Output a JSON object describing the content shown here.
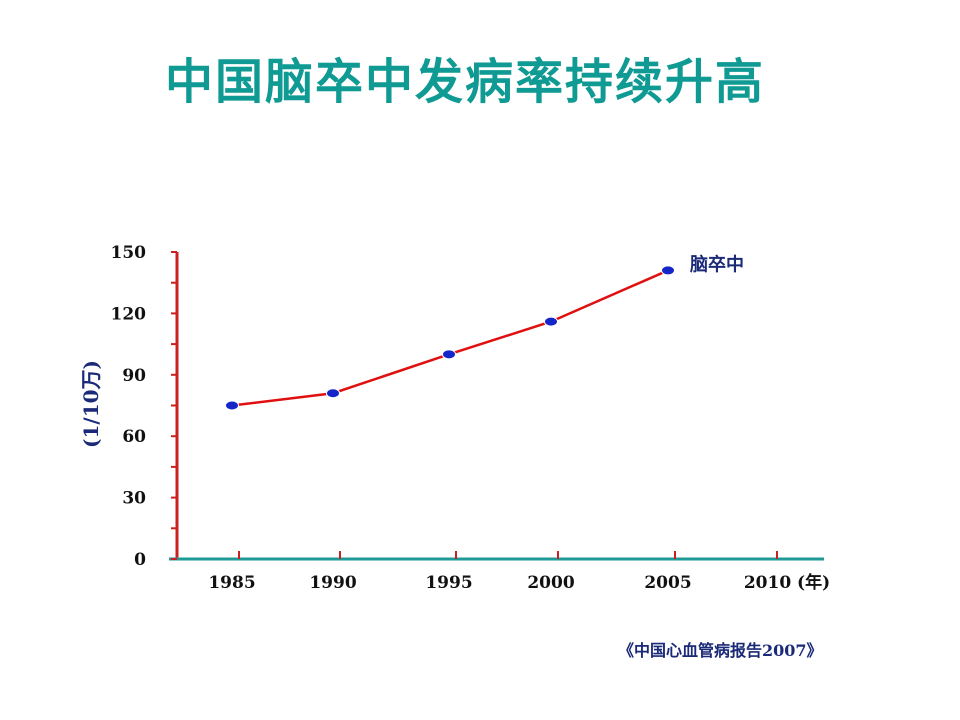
{
  "title": "中国脑卒中发病率持续升高",
  "source": "《中国心血管病报告2007》",
  "colors": {
    "title": "#0f9a93",
    "axis_y": "#cc1f1f",
    "axis_x": "#1f9a96",
    "line": "#e01010",
    "marker": "#1426c9",
    "text": "#1b2a78"
  },
  "chart_data": {
    "type": "line",
    "x": [
      1985,
      1990,
      1995,
      2000,
      2005
    ],
    "x_ticks": [
      "1985",
      "1990",
      "1995",
      "2000",
      "2005",
      "2010 (年)"
    ],
    "y_ticks": [
      "0",
      "30",
      "60",
      "90",
      "120",
      "150"
    ],
    "ylabel": "(1/10万)",
    "ylim": [
      0,
      150
    ],
    "grid": false,
    "series": [
      {
        "name": "脑卒中",
        "values": [
          75,
          81,
          100,
          116,
          141
        ]
      }
    ]
  }
}
